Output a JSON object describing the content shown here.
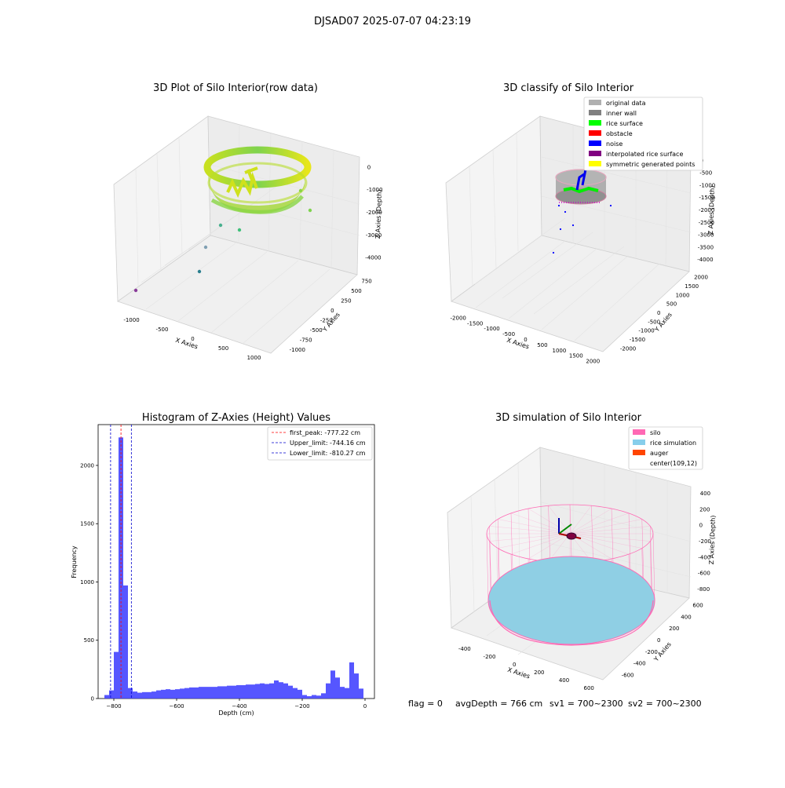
{
  "figure": {
    "suptitle": "DJSAD07 2025-07-07 04:23:19",
    "status": {
      "flag": "flag = 0",
      "avg_depth": "avgDepth = 766 cm",
      "sv1": "sv1 = 700~2300",
      "sv2": "sv2 = 700~2300"
    }
  },
  "chart_data": [
    {
      "type": "scatter",
      "title": "3D Plot of Silo Interior(row data)",
      "xlabel": "X Axies",
      "ylabel": "Y Axies",
      "zlabel": "Z Axies (Depth)",
      "x_ticks": [
        "-1000",
        "-500",
        "0",
        "500",
        "1000"
      ],
      "y_ticks": [
        "-1000",
        "-750",
        "-500",
        "-250",
        "0",
        "250",
        "500",
        "750"
      ],
      "z_ticks": [
        "0",
        "-1000",
        "-2000",
        "-3000",
        "-4000"
      ],
      "zlim": [
        -4000,
        0
      ],
      "colormap": [
        "#440154",
        "#21918c",
        "#5ec962",
        "#fde725"
      ],
      "grid": true
    },
    {
      "type": "scatter",
      "title": "3D classify of Silo Interior",
      "xlabel": "X Axies",
      "ylabel": "Y Axies",
      "zlabel": "Z Axies (Depth)",
      "x_ticks": [
        "-2000",
        "-1500",
        "-1000",
        "-500",
        "0",
        "500",
        "1000",
        "1500",
        "2000"
      ],
      "y_ticks": [
        "-2000",
        "-1500",
        "-1000",
        "-500",
        "0",
        "500",
        "1000",
        "1500",
        "2000"
      ],
      "z_ticks": [
        "0",
        "-500",
        "-1000",
        "-1500",
        "-2000",
        "-2500",
        "-3000",
        "-3500",
        "-4000"
      ],
      "legend": [
        {
          "name": "original data",
          "color": "#b0b0b0"
        },
        {
          "name": "inner wall",
          "color": "#808080"
        },
        {
          "name": "rice surface",
          "color": "#00ff00"
        },
        {
          "name": "obstacle",
          "color": "#ff0000"
        },
        {
          "name": "noise",
          "color": "#0000ff"
        },
        {
          "name": "interpolated rice surface",
          "color": "#800080"
        },
        {
          "name": "symmetric generated points",
          "color": "#ffff00"
        }
      ],
      "legend_position": "top-right",
      "grid": true
    },
    {
      "type": "bar",
      "title": "Histogram of Z-Axies (Height) Values",
      "xlabel": "Depth (cm)",
      "ylabel": "Frequency",
      "xlim": [
        -850,
        30
      ],
      "ylim": [
        0,
        2350
      ],
      "x_ticks": [
        -800,
        -600,
        -400,
        -200,
        0
      ],
      "y_ticks": [
        0,
        500,
        1000,
        1500,
        2000
      ],
      "bin_width": 15,
      "bins_start": [
        -830,
        -815,
        -800,
        -785,
        -770,
        -755,
        -740,
        -725,
        -710,
        -695,
        -680,
        -665,
        -650,
        -635,
        -620,
        -605,
        -590,
        -575,
        -560,
        -545,
        -530,
        -515,
        -500,
        -485,
        -470,
        -455,
        -440,
        -425,
        -410,
        -395,
        -380,
        -365,
        -350,
        -335,
        -320,
        -305,
        -290,
        -275,
        -260,
        -245,
        -230,
        -215,
        -200,
        -185,
        -170,
        -155,
        -140,
        -125,
        -110,
        -95,
        -80,
        -65,
        -50,
        -35,
        -20,
        -5
      ],
      "values": [
        30,
        70,
        400,
        2240,
        970,
        90,
        60,
        50,
        55,
        55,
        60,
        70,
        75,
        80,
        75,
        80,
        85,
        90,
        95,
        95,
        100,
        100,
        100,
        100,
        105,
        105,
        110,
        110,
        115,
        115,
        120,
        120,
        125,
        130,
        125,
        130,
        155,
        140,
        130,
        110,
        90,
        75,
        30,
        20,
        30,
        25,
        45,
        130,
        240,
        180,
        100,
        90,
        310,
        215,
        85,
        0
      ],
      "bar_color": "#4444ff",
      "vlines": [
        {
          "label": "first_peak: -777.22 cm",
          "x": -777.22,
          "color": "#ff0000"
        },
        {
          "label": "Upper_limit: -744.16 cm",
          "x": -744.16,
          "color": "#0000cc"
        },
        {
          "label": "Lower_limit: -810.27 cm",
          "x": -810.27,
          "color": "#0000cc"
        }
      ],
      "legend_position": "top-right"
    },
    {
      "type": "scatter",
      "title": "3D simulation of Silo Interior",
      "xlabel": "X Axies",
      "ylabel": "Y Axies",
      "zlabel": "Z Axies (Depth)",
      "x_ticks": [
        "-400",
        "-200",
        "0",
        "200",
        "400",
        "600"
      ],
      "y_ticks": [
        "-600",
        "-400",
        "-200",
        "0",
        "200",
        "400",
        "600"
      ],
      "z_ticks": [
        "400",
        "200",
        "0",
        "-200",
        "-400",
        "-600",
        "-800"
      ],
      "legend": [
        {
          "name": "silo",
          "color": "#ff69b4"
        },
        {
          "name": "rice simulation",
          "color": "#87ceeb"
        },
        {
          "name": "auger",
          "color": "#ff4500"
        },
        {
          "name": "center(109,12)",
          "color": ""
        }
      ],
      "legend_position": "top-right",
      "grid": true
    }
  ]
}
